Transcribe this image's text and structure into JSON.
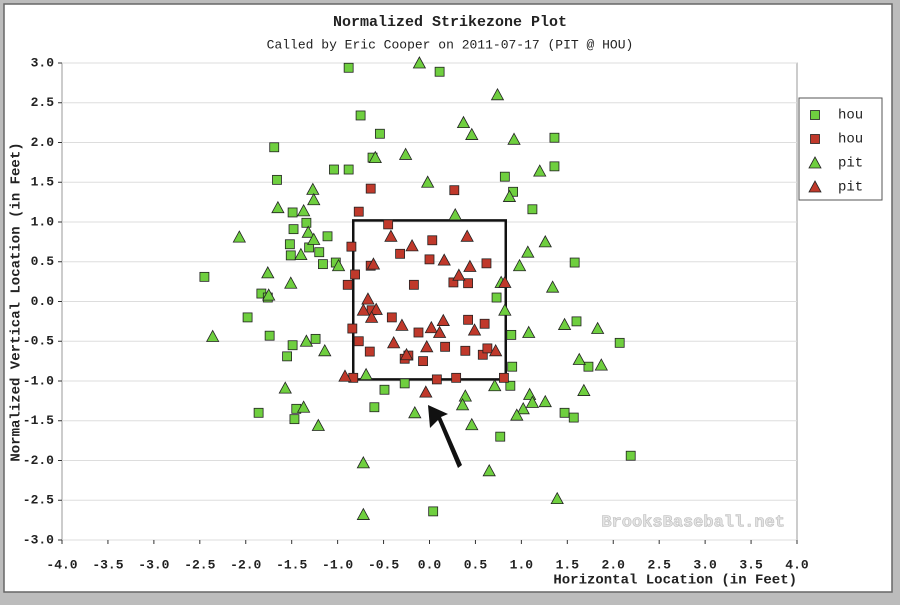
{
  "chart_data": {
    "type": "scatter",
    "title": "Normalized Strikezone Plot",
    "subtitle": "Called by Eric Cooper on 2011-07-17 (PIT @ HOU)",
    "xlabel": "Horizontal Location (in Feet)",
    "ylabel": "Normalized Vertical Location (in Feet)",
    "watermark": "BrooksBaseball.net",
    "xlim": [
      -4,
      4
    ],
    "ylim": [
      -3,
      3
    ],
    "grid": true,
    "legend": "right",
    "xticks": [
      {
        "value": -4,
        "label": "-4.0"
      },
      {
        "value": -3.5,
        "label": "-3.5"
      },
      {
        "value": -3,
        "label": "-3.0"
      },
      {
        "value": -2.5,
        "label": "-2.5"
      },
      {
        "value": -2,
        "label": "-2.0"
      },
      {
        "value": -1.5,
        "label": "-1.5"
      },
      {
        "value": -1,
        "label": "-1.0"
      },
      {
        "value": -0.5,
        "label": "-0.5"
      },
      {
        "value": 0,
        "label": "0.0"
      },
      {
        "value": 0.5,
        "label": "0.5"
      },
      {
        "value": 1,
        "label": "1.0"
      },
      {
        "value": 1.5,
        "label": "1.5"
      },
      {
        "value": 2,
        "label": "2.0"
      },
      {
        "value": 2.5,
        "label": "2.5"
      },
      {
        "value": 3,
        "label": "3.0"
      },
      {
        "value": 3.5,
        "label": "3.5"
      },
      {
        "value": 4,
        "label": "4.0"
      }
    ],
    "yticks": [
      {
        "value": 3,
        "label": "3.0"
      },
      {
        "value": 2.5,
        "label": "2.5"
      },
      {
        "value": 2,
        "label": "2.0"
      },
      {
        "value": 1.5,
        "label": "1.5"
      },
      {
        "value": 1,
        "label": "1.0"
      },
      {
        "value": 0.5,
        "label": "0.5"
      },
      {
        "value": 0,
        "label": "0.0"
      },
      {
        "value": -0.5,
        "label": "-0.5"
      },
      {
        "value": -1,
        "label": "-1.0"
      },
      {
        "value": -1.5,
        "label": "-1.5"
      },
      {
        "value": -2,
        "label": "-2.0"
      },
      {
        "value": -2.5,
        "label": "-2.5"
      },
      {
        "value": -3,
        "label": "-3.0"
      }
    ],
    "strike_zone": {
      "x": [
        -0.83,
        0.83
      ],
      "y": [
        -0.98,
        1.02
      ]
    },
    "series": [
      {
        "name": "hou",
        "color": "#6fcf3f",
        "marker": "square",
        "x": [
          -0.88,
          0.11,
          -0.75,
          -0.54,
          1.36,
          -1.69,
          -0.62,
          1.36,
          -1.04,
          -0.88,
          0.82,
          -1.66,
          0.91,
          1.12,
          -1.49,
          -1.34,
          -1.48,
          -1.11,
          -1.52,
          -1.31,
          -1.2,
          -1.51,
          -1.02,
          1.58,
          -1.16,
          -2.45,
          -1.83,
          -1.76,
          0.73,
          -1.98,
          1.6,
          0.89,
          -1.74,
          -1.24,
          -1.49,
          2.07,
          -1.55,
          0.9,
          1.73,
          0.88,
          -0.27,
          -0.49,
          -1.86,
          -1.45,
          -0.6,
          1.47,
          1.57,
          -1.47,
          0.77,
          2.19,
          0.04
        ],
        "values": [
          2.94,
          2.89,
          2.34,
          2.11,
          2.06,
          1.94,
          1.81,
          1.7,
          1.66,
          1.66,
          1.57,
          1.53,
          1.38,
          1.16,
          1.12,
          0.99,
          0.91,
          0.82,
          0.72,
          0.68,
          0.62,
          0.58,
          0.49,
          0.49,
          0.47,
          0.31,
          0.1,
          0.05,
          0.05,
          -0.2,
          -0.25,
          -0.42,
          -0.43,
          -0.47,
          -0.55,
          -0.52,
          -0.69,
          -0.82,
          -0.82,
          -1.06,
          -1.03,
          -1.11,
          -1.4,
          -1.35,
          -1.33,
          -1.4,
          -1.46,
          -1.48,
          -1.7,
          -1.94,
          -2.64
        ]
      },
      {
        "name": "hou",
        "color": "#c0392b",
        "marker": "square",
        "x": [
          -0.64,
          0.27,
          -0.77,
          -0.45,
          0.03,
          -0.85,
          -0.32,
          0,
          -0.64,
          0.62,
          -0.81,
          0.26,
          -0.89,
          -0.17,
          0.42,
          -0.63,
          -0.41,
          0.42,
          -0.84,
          0.6,
          -0.12,
          -0.77,
          0.39,
          -0.65,
          0.17,
          -0.07,
          -0.23,
          0.58,
          0.63,
          -0.27,
          -0.83,
          0.08,
          0.29,
          0.81
        ],
        "values": [
          1.42,
          1.4,
          1.13,
          0.97,
          0.77,
          0.69,
          0.6,
          0.53,
          0.45,
          0.48,
          0.34,
          0.24,
          0.21,
          0.21,
          0.23,
          -0.11,
          -0.2,
          -0.23,
          -0.34,
          -0.28,
          -0.39,
          -0.5,
          -0.62,
          -0.63,
          -0.57,
          -0.75,
          -0.68,
          -0.67,
          -0.59,
          -0.72,
          -0.96,
          -0.98,
          -0.96,
          -0.96
        ]
      },
      {
        "name": "pit",
        "color": "#6fcf3f",
        "marker": "triangle",
        "x": [
          -0.11,
          0.74,
          0.37,
          0.46,
          0.92,
          -0.26,
          -0.59,
          -0.02,
          1.2,
          -1.27,
          0.87,
          -1.65,
          -1.26,
          -1.37,
          0.28,
          -1.32,
          -2.07,
          1.26,
          -1.26,
          1.07,
          -1.4,
          -0.99,
          -1.76,
          0.98,
          0.78,
          -1.51,
          1.34,
          -1.75,
          0.82,
          1.47,
          1.83,
          -2.36,
          -1.34,
          1.08,
          -1.14,
          1.63,
          1.87,
          -0.69,
          0.71,
          -1.57,
          1.68,
          1.09,
          0.39,
          1.12,
          1.26,
          0.36,
          -1.37,
          1.02,
          -0.16,
          0.95,
          -1.21,
          0.46,
          -0.72,
          0.65,
          1.39,
          -0.72
        ],
        "values": [
          3,
          2.6,
          2.25,
          2.1,
          2.04,
          1.85,
          1.81,
          1.5,
          1.64,
          1.41,
          1.32,
          1.18,
          1.28,
          1.14,
          1.09,
          0.87,
          0.81,
          0.75,
          0.78,
          0.62,
          0.59,
          0.45,
          0.36,
          0.45,
          0.24,
          0.23,
          0.18,
          0.08,
          -0.11,
          -0.29,
          -0.34,
          -0.44,
          -0.5,
          -0.39,
          -0.62,
          -0.73,
          -0.8,
          -0.92,
          -1.06,
          -1.09,
          -1.12,
          -1.17,
          -1.19,
          -1.27,
          -1.26,
          -1.3,
          -1.33,
          -1.35,
          -1.4,
          -1.43,
          -1.56,
          -1.55,
          -2.03,
          -2.13,
          -2.48,
          -2.68
        ]
      },
      {
        "name": "pit",
        "color": "#c0392b",
        "marker": "triangle",
        "x": [
          -0.42,
          0.41,
          -0.19,
          0.16,
          -0.61,
          0.44,
          0.32,
          0.82,
          -0.67,
          -0.58,
          -0.72,
          -0.63,
          0.15,
          -0.3,
          0.02,
          0.49,
          0.11,
          -0.39,
          -0.03,
          0.72,
          -0.25,
          -0.92,
          -0.04
        ],
        "values": [
          0.82,
          0.82,
          0.7,
          0.52,
          0.47,
          0.44,
          0.33,
          0.24,
          0.03,
          -0.1,
          -0.11,
          -0.2,
          -0.24,
          -0.3,
          -0.33,
          -0.36,
          -0.39,
          -0.52,
          -0.57,
          -0.62,
          -0.67,
          -0.94,
          -1.14
        ]
      }
    ]
  }
}
